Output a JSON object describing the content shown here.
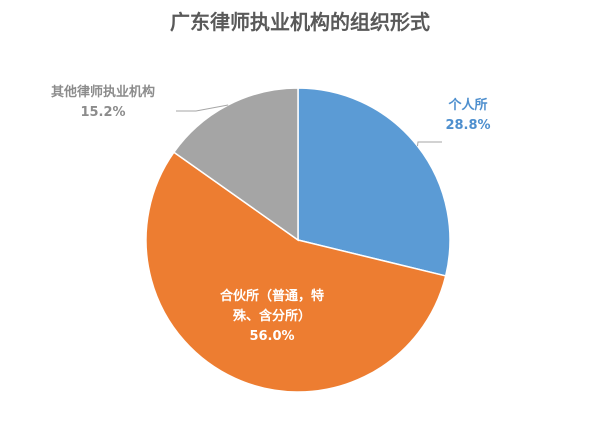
{
  "chart_data": {
    "type": "pie",
    "title": "广东律师执业机构的组织形式",
    "slices": [
      {
        "category": "个人所",
        "value": 28.8,
        "value_label": "28.8%",
        "color": "#5b9bd5",
        "label_color": "#4e8fce",
        "label_lines": [
          "个人所"
        ]
      },
      {
        "category": "合伙所（普通，特殊、含分所）",
        "value": 56.0,
        "value_label": "56.0%",
        "color": "#ed7d31",
        "label_color": "#ffffff",
        "label_lines": [
          "合伙所（普通，特",
          "殊、含分所）"
        ]
      },
      {
        "category": "其他律师执业机构",
        "value": 15.2,
        "value_label": "15.2%",
        "color": "#a5a5a5",
        "label_color": "#8c8c8c",
        "label_lines": [
          "其他律师执业机构"
        ]
      }
    ],
    "start_angle": "12 o'clock",
    "direction": "clockwise",
    "legend": "none",
    "leader_lines": true
  }
}
